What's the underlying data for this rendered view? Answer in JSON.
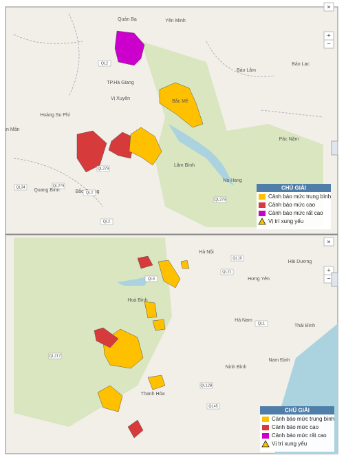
{
  "maps": [
    {
      "places": [
        "Quản Bạ",
        "Yên Minh",
        "TP.Hà Giang",
        "Vị Xuyên",
        "Bắc Mê",
        "Bảo Lâm",
        "Bảo Lạc",
        "Hoàng Su Phì",
        "in Mần",
        "Pác Nặm",
        "Lâm Bình",
        "Na Hang",
        "Quang Bình",
        "Bắc Quang"
      ],
      "roads": [
        "QL2",
        "QL279",
        "QL34",
        "QL279",
        "QL2",
        "QL279",
        "QL2"
      ],
      "controls": [
        "»",
        "+",
        "−"
      ],
      "legend": {
        "title": "CHÚ GIẢI",
        "items": [
          {
            "label": "Cảnh báo mức trung bình",
            "color": "#ffc000"
          },
          {
            "label": "Cảnh báo mức cao",
            "color": "#d63a3a"
          },
          {
            "label": "Cảnh báo mức rất cao",
            "color": "#cc00cc"
          },
          {
            "label": "Vị trí xung yếu"
          }
        ]
      }
    },
    {
      "places": [
        "Hà Nội",
        "Hải Dương",
        "Hưng Yên",
        "Hoà Bình",
        "Hà Nam",
        "Thái Bình",
        "Nam Định",
        "Ninh Bình",
        "Thanh Hóa"
      ],
      "roads": [
        "QL6",
        "QL21",
        "QL1",
        "QL10",
        "QL45",
        "QL217",
        "QL12B"
      ],
      "controls": [
        "»",
        "+",
        "−"
      ],
      "legend": {
        "title": "CHÚ GIẢI",
        "items": [
          {
            "label": "Cảnh báo mức trung bình",
            "color": "#ffc000"
          },
          {
            "label": "Cảnh báo mức cao",
            "color": "#d63a3a"
          },
          {
            "label": "Cảnh báo mức rất cao",
            "color": "#cc00cc"
          },
          {
            "label": "Vị trí xung yếu"
          }
        ]
      }
    }
  ]
}
